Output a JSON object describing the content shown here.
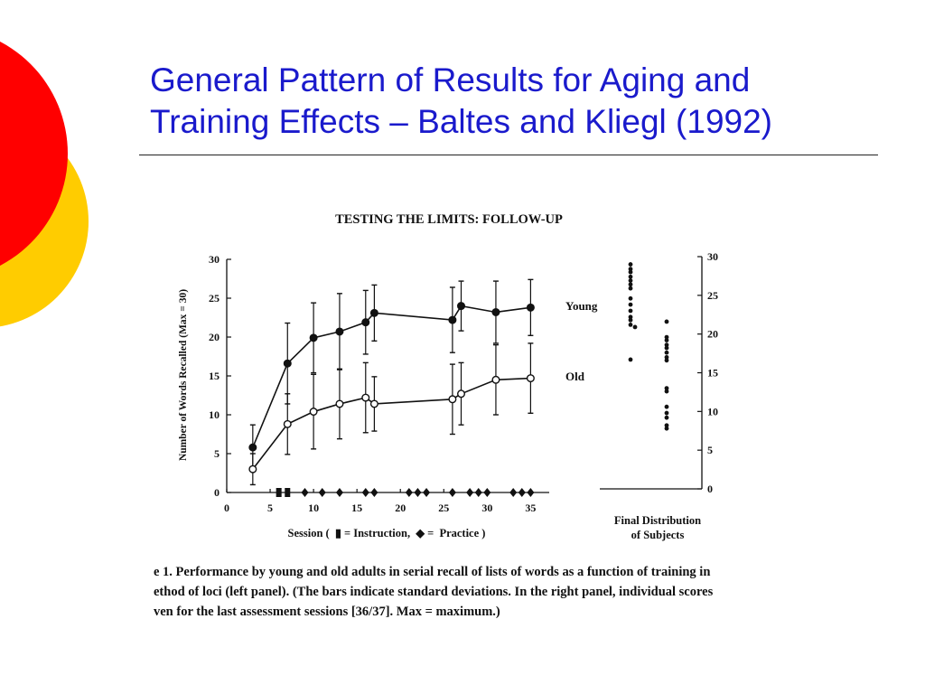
{
  "slide": {
    "title_lines": [
      "General Pattern of Results for Aging and",
      "Training Effects – Baltes and Kliegl (1992)"
    ],
    "accent_colors": {
      "title": "#1a1acc",
      "circle_red": "#ff0000",
      "circle_yellow": "#ffcc00"
    }
  },
  "chart_data": {
    "type": "line",
    "title": "TESTING THE LIMITS: FOLLOW-UP",
    "ylabel": "Number of Words Recalled (Max = 30)",
    "xlabel": "Session (  ▮ = Instruction,  ◆ =  Practice )",
    "xlim": [
      0,
      36
    ],
    "ylim": [
      0,
      30
    ],
    "xticks": [
      "0",
      "5",
      "10",
      "15",
      "20",
      "25",
      "30",
      "35"
    ],
    "yticks": [
      "0",
      "5",
      "10",
      "15",
      "20",
      "25",
      "30"
    ],
    "series": [
      {
        "name": "Young",
        "marker": "filled-circle",
        "x": [
          3,
          7,
          10,
          13,
          16,
          17,
          26,
          27,
          31,
          35
        ],
        "y": [
          5.8,
          16.6,
          19.9,
          20.7,
          21.9,
          23.1,
          22.2,
          24.0,
          23.2,
          23.8
        ],
        "sd": [
          2.9,
          5.2,
          4.5,
          4.9,
          4.1,
          3.6,
          4.2,
          3.2,
          4.0,
          3.6
        ]
      },
      {
        "name": "Old",
        "marker": "open-circle",
        "x": [
          3,
          7,
          10,
          13,
          16,
          17,
          26,
          27,
          31,
          35
        ],
        "y": [
          3.0,
          8.8,
          10.4,
          11.4,
          12.2,
          11.4,
          12.0,
          12.7,
          14.5,
          14.7
        ],
        "sd": [
          2.0,
          3.9,
          4.8,
          4.5,
          4.5,
          3.5,
          4.5,
          4.0,
          4.5,
          4.5
        ]
      }
    ],
    "instruction_sessions": [
      6,
      7
    ],
    "practice_sessions": [
      9,
      11,
      13,
      16,
      17,
      21,
      22,
      23,
      26,
      28,
      29,
      30,
      33,
      34,
      35
    ],
    "right_panel": {
      "title_lines": [
        "Final Distribution",
        "of Subjects"
      ],
      "ylim": [
        0,
        30
      ],
      "yticks": [
        "0",
        "5",
        "10",
        "15",
        "20",
        "25",
        "30"
      ],
      "young_scores": [
        29,
        28.4,
        28,
        27.4,
        26.9,
        26.4,
        25.9,
        24.6,
        23.8,
        23.0,
        22.2,
        21.8,
        21.2,
        20.9,
        16.7
      ],
      "old_scores": [
        21.6,
        19.6,
        19.2,
        18.6,
        18.2,
        17.6,
        17.0,
        16.6,
        13.0,
        12.6,
        10.6,
        9.8,
        9.2,
        8.2,
        7.8
      ]
    }
  },
  "caption": {
    "lines": [
      "e 1.    Performance by young and old adults in serial recall of lists of words as a function of training in",
      "ethod of loci (left panel). (The bars indicate standard deviations. In the right panel, individual scores",
      "ven for the last assessment sessions [36/37]. Max = maximum.)"
    ]
  }
}
